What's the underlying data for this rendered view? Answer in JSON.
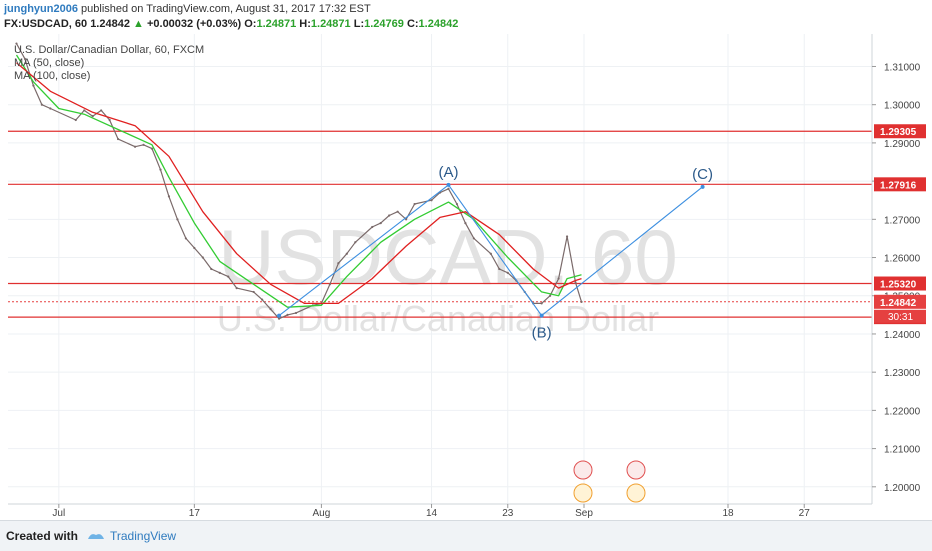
{
  "header": {
    "author": "junghyun2006",
    "published_text": " published on TradingView.com, August 31, 2017 17:32 EST",
    "symbol_interval": "FX:USDCAD, 60",
    "last": "1.24842",
    "change_arrow": "▲",
    "change": "+0.00032 (+0.03%)",
    "o_label": "O:",
    "o_value": "1.24871",
    "h_label": "H:",
    "h_value": "1.24871",
    "l_label": "L:",
    "l_value": "1.24769",
    "c_label": "C:",
    "c_value": "1.24842"
  },
  "legend": {
    "line1": "U.S. Dollar/Canadian Dollar, 60, FXCM",
    "line2": "MA (50, close)",
    "line3": "MA (100, close)"
  },
  "footer": {
    "created_with": "Created with",
    "brand": "TradingView"
  },
  "colors": {
    "price": "#7a6a6a",
    "ma50": "#33cc33",
    "ma100": "#e02020",
    "level_line": "#e03030",
    "wave_line": "#3d8fe0",
    "wave_label": "#2c5a8a",
    "price_marker": "#e54040",
    "axis_text": "#444444",
    "watermark": "#e2e2e2"
  },
  "chart_data": {
    "type": "line",
    "title": "U.S. Dollar/Canadian Dollar, 60, FXCM",
    "watermark_symbol": "USDCAD, 60",
    "watermark_name": "U.S. Dollar/Canadian Dollar",
    "ylim": [
      1.1955,
      1.3185
    ],
    "xlim": [
      "2017-06-25",
      "2017-10-05"
    ],
    "y_ticks": [
      "1.20000",
      "1.21000",
      "1.22000",
      "1.23000",
      "1.24000",
      "1.25000",
      "1.26000",
      "1.27000",
      "1.28000",
      "1.29000",
      "1.30000",
      "1.31000"
    ],
    "x_ticks": [
      {
        "label": "Jul",
        "date": "2017-07-01"
      },
      {
        "label": "17",
        "date": "2017-07-17"
      },
      {
        "label": "Aug",
        "date": "2017-08-01"
      },
      {
        "label": "14",
        "date": "2017-08-14"
      },
      {
        "label": "23",
        "date": "2017-08-23"
      },
      {
        "label": "Sep",
        "date": "2017-09-01"
      },
      {
        "label": "18",
        "date": "2017-09-18"
      },
      {
        "label": "27",
        "date": "2017-09-27"
      }
    ],
    "levels": [
      {
        "value": 1.29305,
        "label": "1.29305"
      },
      {
        "value": 1.27916,
        "label": "1.27916"
      },
      {
        "value": 1.2532,
        "label": "1.25320"
      },
      {
        "value": 1.2444,
        "label": "1.24440"
      }
    ],
    "last_price": {
      "value": 1.24842,
      "label": "1.24842",
      "countdown": "30:31"
    },
    "series": [
      {
        "name": "USDCAD",
        "points": [
          [
            "2017-06-26",
            1.316
          ],
          [
            "2017-06-27",
            1.312
          ],
          [
            "2017-06-28",
            1.305
          ],
          [
            "2017-06-29",
            1.3
          ],
          [
            "2017-06-30",
            1.299
          ],
          [
            "2017-07-03",
            1.296
          ],
          [
            "2017-07-04",
            1.2985
          ],
          [
            "2017-07-05",
            1.297
          ],
          [
            "2017-07-06",
            1.2985
          ],
          [
            "2017-07-07",
            1.296
          ],
          [
            "2017-07-08",
            1.291
          ],
          [
            "2017-07-10",
            1.289
          ],
          [
            "2017-07-11",
            1.2895
          ],
          [
            "2017-07-12",
            1.2885
          ],
          [
            "2017-07-13",
            1.283
          ],
          [
            "2017-07-14",
            1.276
          ],
          [
            "2017-07-15",
            1.27
          ],
          [
            "2017-07-16",
            1.265
          ],
          [
            "2017-07-17",
            1.2625
          ],
          [
            "2017-07-18",
            1.26
          ],
          [
            "2017-07-19",
            1.257
          ],
          [
            "2017-07-20",
            1.256
          ],
          [
            "2017-07-21",
            1.255
          ],
          [
            "2017-07-22",
            1.252
          ],
          [
            "2017-07-24",
            1.251
          ],
          [
            "2017-07-25",
            1.249
          ],
          [
            "2017-07-26",
            1.2465
          ],
          [
            "2017-07-27",
            1.244
          ],
          [
            "2017-07-28",
            1.245
          ],
          [
            "2017-07-29",
            1.2455
          ],
          [
            "2017-07-31",
            1.2475
          ],
          [
            "2017-08-01",
            1.248
          ],
          [
            "2017-08-02",
            1.253
          ],
          [
            "2017-08-03",
            1.2585
          ],
          [
            "2017-08-04",
            1.261
          ],
          [
            "2017-08-05",
            1.264
          ],
          [
            "2017-08-07",
            1.268
          ],
          [
            "2017-08-08",
            1.269
          ],
          [
            "2017-08-09",
            1.271
          ],
          [
            "2017-08-10",
            1.272
          ],
          [
            "2017-08-11",
            1.27
          ],
          [
            "2017-08-12",
            1.274
          ],
          [
            "2017-08-14",
            1.275
          ],
          [
            "2017-08-15",
            1.277
          ],
          [
            "2017-08-16",
            1.278
          ],
          [
            "2017-08-17",
            1.274
          ],
          [
            "2017-08-18",
            1.269
          ],
          [
            "2017-08-19",
            1.265
          ],
          [
            "2017-08-21",
            1.261
          ],
          [
            "2017-08-22",
            1.257
          ],
          [
            "2017-08-23",
            1.256
          ],
          [
            "2017-08-24",
            1.254
          ],
          [
            "2017-08-25",
            1.251
          ],
          [
            "2017-08-26",
            1.248
          ],
          [
            "2017-08-27",
            1.248
          ],
          [
            "2017-08-28",
            1.25
          ],
          [
            "2017-08-29",
            1.2545
          ],
          [
            "2017-08-30",
            1.2655
          ],
          [
            "2017-08-31",
            1.2535
          ],
          [
            "2017-08-31T17:00",
            1.2484
          ]
        ]
      },
      {
        "name": "MA (50, close)",
        "points": [
          [
            "2017-06-26",
            1.313
          ],
          [
            "2017-06-28",
            1.306
          ],
          [
            "2017-07-01",
            1.299
          ],
          [
            "2017-07-04",
            1.2975
          ],
          [
            "2017-07-08",
            1.2935
          ],
          [
            "2017-07-12",
            1.2895
          ],
          [
            "2017-07-14",
            1.281
          ],
          [
            "2017-07-17",
            1.269
          ],
          [
            "2017-07-20",
            1.259
          ],
          [
            "2017-07-24",
            1.253
          ],
          [
            "2017-07-28",
            1.247
          ],
          [
            "2017-08-01",
            1.2475
          ],
          [
            "2017-08-04",
            1.255
          ],
          [
            "2017-08-08",
            1.264
          ],
          [
            "2017-08-12",
            1.27
          ],
          [
            "2017-08-16",
            1.2745
          ],
          [
            "2017-08-19",
            1.27
          ],
          [
            "2017-08-23",
            1.26
          ],
          [
            "2017-08-27",
            1.251
          ],
          [
            "2017-08-29",
            1.25
          ],
          [
            "2017-08-30",
            1.2545
          ],
          [
            "2017-08-31T17:00",
            1.2555
          ]
        ]
      },
      {
        "name": "MA (100, close)",
        "points": [
          [
            "2017-06-26",
            1.311
          ],
          [
            "2017-06-30",
            1.3035
          ],
          [
            "2017-07-05",
            1.298
          ],
          [
            "2017-07-10",
            1.2945
          ],
          [
            "2017-07-14",
            1.2865
          ],
          [
            "2017-07-18",
            1.272
          ],
          [
            "2017-07-22",
            1.261
          ],
          [
            "2017-07-26",
            1.253
          ],
          [
            "2017-07-30",
            1.248
          ],
          [
            "2017-08-03",
            1.248
          ],
          [
            "2017-08-07",
            1.2545
          ],
          [
            "2017-08-11",
            1.263
          ],
          [
            "2017-08-15",
            1.2705
          ],
          [
            "2017-08-18",
            1.272
          ],
          [
            "2017-08-22",
            1.266
          ],
          [
            "2017-08-26",
            1.257
          ],
          [
            "2017-08-29",
            1.252
          ],
          [
            "2017-08-31",
            1.254
          ],
          [
            "2017-08-31T17:00",
            1.2545
          ]
        ]
      }
    ],
    "annotations": [
      {
        "label": "(A)",
        "date": "2017-08-16",
        "value": 1.279
      },
      {
        "label": "(B)",
        "date": "2017-08-27",
        "value": 1.2448
      },
      {
        "label": "(C)",
        "date": "2017-09-15",
        "value": 1.2785
      }
    ],
    "wave_path": [
      [
        "2017-07-27",
        1.2448
      ],
      [
        "2017-08-16",
        1.279
      ],
      [
        "2017-08-27",
        1.2448
      ],
      [
        "2017-09-15",
        1.2785
      ]
    ]
  }
}
